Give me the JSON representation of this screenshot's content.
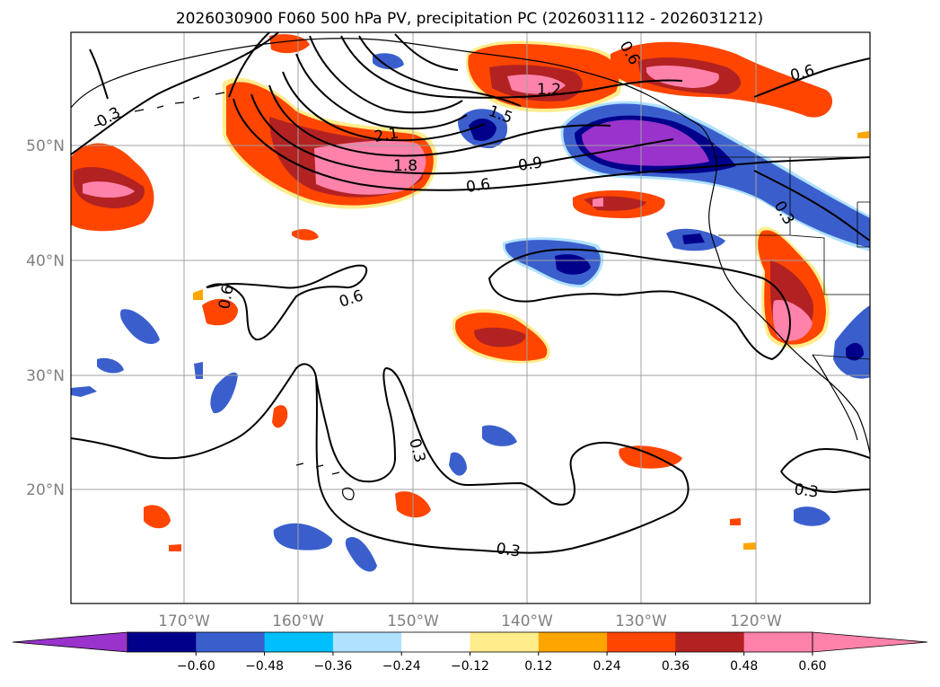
{
  "figure": {
    "title": "2026030900 F060 500 hPa PV, precipitation PC (2026031112 - 2026031212)"
  },
  "axes": {
    "lon_labels": [
      "170°W",
      "160°W",
      "150°W",
      "140°W",
      "130°W",
      "120°W"
    ],
    "lat_labels": [
      "50°N",
      "40°N",
      "30°N",
      "20°N"
    ]
  },
  "colorbar": {
    "tick_labels": [
      "−0.60",
      "−0.48",
      "−0.36",
      "−0.24",
      "−0.12",
      "0.12",
      "0.24",
      "0.36",
      "0.48",
      "0.60"
    ],
    "colors": [
      "#9933cc",
      "#00008b",
      "#3a5fcd",
      "#00bfff",
      "#b0e2ff",
      "#ffffff",
      "#ffec8b",
      "#ffa500",
      "#ff4500",
      "#b22222",
      "#ff82ab",
      "#ff82ab"
    ]
  },
  "contour_labels": [
    {
      "id": "pv-1-2",
      "text": "1.2"
    },
    {
      "id": "pv-1-5",
      "text": "1.5"
    },
    {
      "id": "pv-2-1",
      "text": "2.1"
    },
    {
      "id": "pv-1-8",
      "text": "1.8"
    },
    {
      "id": "pv-0-9",
      "text": "0.9"
    },
    {
      "id": "pv-0-6-a",
      "text": "0.6"
    },
    {
      "id": "pv-0-6-b",
      "text": "0.6"
    },
    {
      "id": "pv-0-6-c",
      "text": "0.6"
    },
    {
      "id": "pv-0-6-d",
      "text": "0.6"
    },
    {
      "id": "pv-0-6-e",
      "text": "0.6"
    },
    {
      "id": "pv-0-3-a",
      "text": "0.3"
    },
    {
      "id": "pv-0-3-b",
      "text": "0.3"
    },
    {
      "id": "pv-0-3-c",
      "text": "0.3"
    },
    {
      "id": "pv-0-3-d",
      "text": "0.3"
    },
    {
      "id": "pv-0-3-e",
      "text": "0.3"
    }
  ]
}
